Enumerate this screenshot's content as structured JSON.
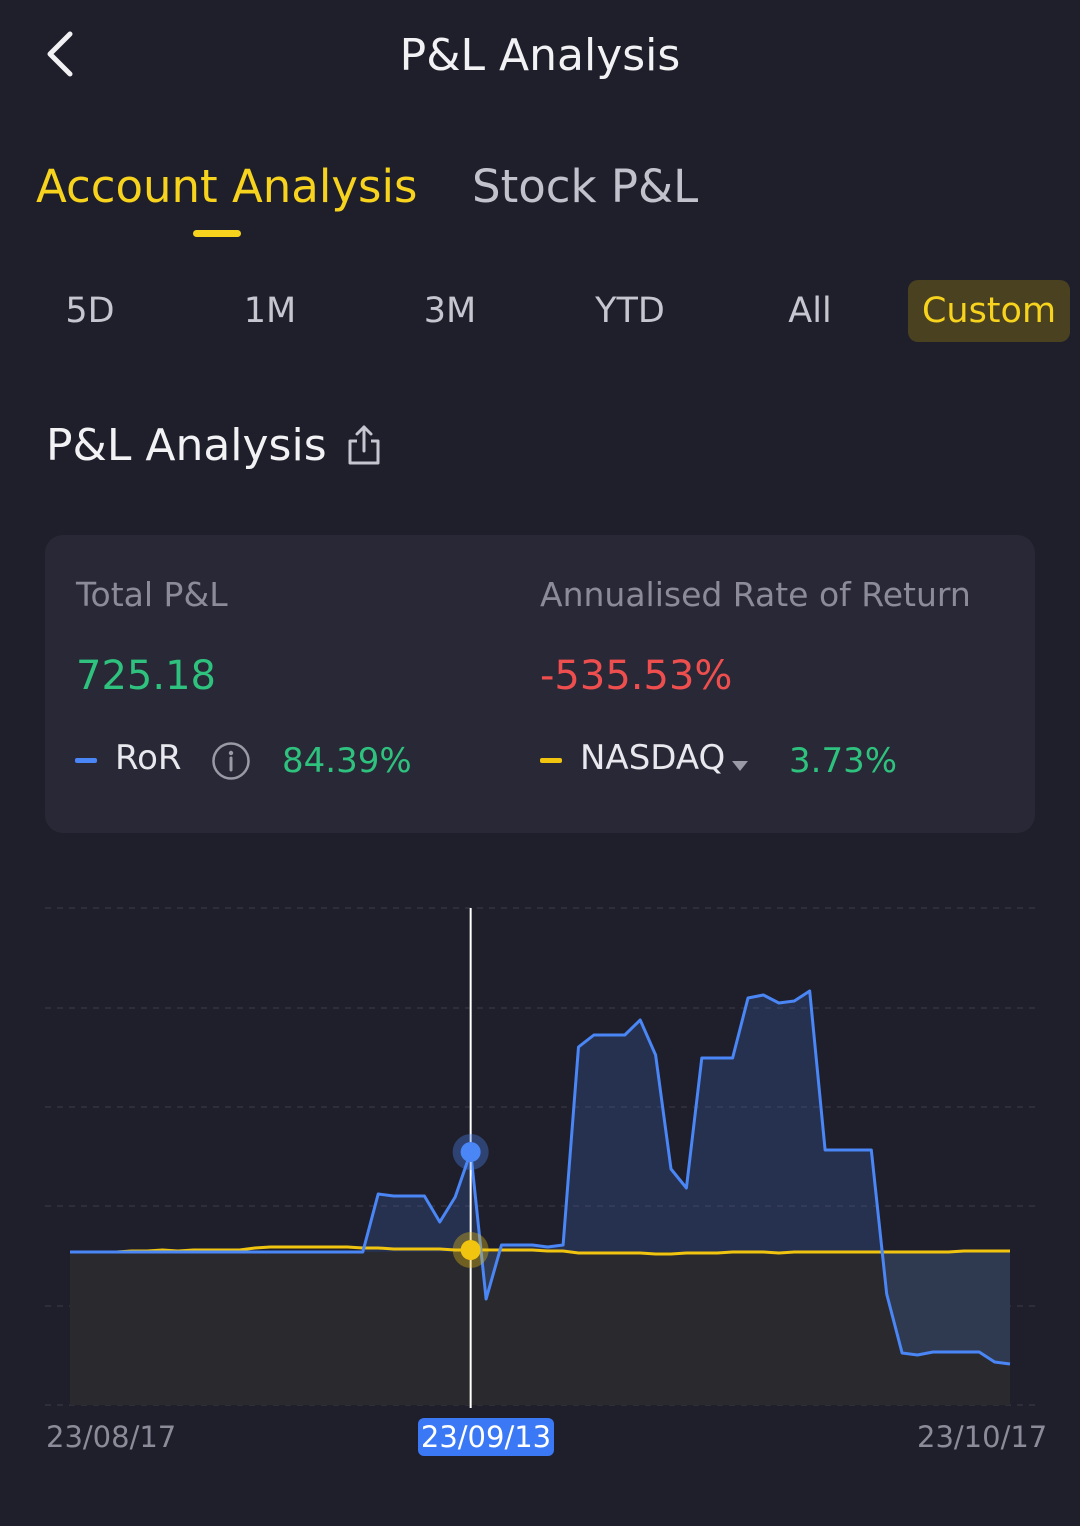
{
  "header": {
    "title": "P&L Analysis"
  },
  "main_tabs": [
    {
      "label": "Account Analysis",
      "active": true
    },
    {
      "label": "Stock P&L",
      "active": false
    }
  ],
  "ranges": [
    {
      "label": "5D"
    },
    {
      "label": "1M"
    },
    {
      "label": "3M"
    },
    {
      "label": "YTD"
    },
    {
      "label": "All"
    },
    {
      "label": "Custom",
      "active": true
    }
  ],
  "section": {
    "title": "P&L Analysis"
  },
  "summary": {
    "total_label": "Total P&L",
    "total_value": "725.18",
    "annualised_label": "Annualised Rate of Return",
    "annualised_value": "-535.53%",
    "ror_label": "RoR",
    "ror_value": "84.39%",
    "benchmark_label": "NASDAQ",
    "benchmark_value": "3.73%"
  },
  "colors": {
    "accent": "#f7d31e",
    "ror_line": "#4a86f5",
    "benchmark_line": "#f0c40f",
    "positive": "#2ec27e",
    "negative": "#ef4e4e"
  },
  "chart_data": {
    "type": "line",
    "x_labels": [
      "23/08/17",
      "23/09/13",
      "23/10/17"
    ],
    "selected_date": "23/09/13",
    "selected_index": 26,
    "grid": true,
    "series": [
      {
        "name": "RoR",
        "values": [
          0,
          0,
          0,
          0,
          0,
          0,
          0,
          0,
          0,
          0,
          0,
          0,
          0,
          0,
          0,
          0,
          0,
          0,
          0,
          0,
          0.58,
          0.56,
          0.56,
          0.56,
          0.3,
          0.55,
          1.0,
          -0.47,
          0.07,
          0.07,
          0.07,
          0.05,
          0.07,
          2.05,
          2.17,
          2.17,
          2.17,
          2.32,
          1.97,
          0.83,
          0.64,
          1.94,
          1.94,
          1.94,
          2.54,
          2.57,
          2.49,
          2.51,
          2.61,
          1.02,
          1.02,
          1.02,
          1.02,
          -0.42,
          -1.01,
          -1.03,
          -1.0,
          -1.0,
          -1.0,
          -1.0,
          -1.1,
          -1.12
        ]
      },
      {
        "name": "NASDAQ",
        "values": [
          0,
          0,
          0,
          0,
          0.01,
          0.01,
          0.02,
          0.01,
          0.02,
          0.02,
          0.02,
          0.02,
          0.04,
          0.05,
          0.05,
          0.05,
          0.05,
          0.05,
          0.05,
          0.04,
          0.04,
          0.03,
          0.03,
          0.03,
          0.03,
          0.02,
          0.02,
          0.02,
          0.02,
          0.02,
          0.02,
          0.01,
          0.01,
          -0.01,
          -0.01,
          -0.01,
          -0.01,
          -0.01,
          -0.02,
          -0.02,
          -0.01,
          -0.01,
          -0.01,
          0,
          0,
          0,
          -0.01,
          0,
          0,
          0,
          0,
          0,
          0,
          0,
          0,
          0,
          0,
          0,
          0.01,
          0.01,
          0.01,
          0.01
        ]
      }
    ]
  }
}
